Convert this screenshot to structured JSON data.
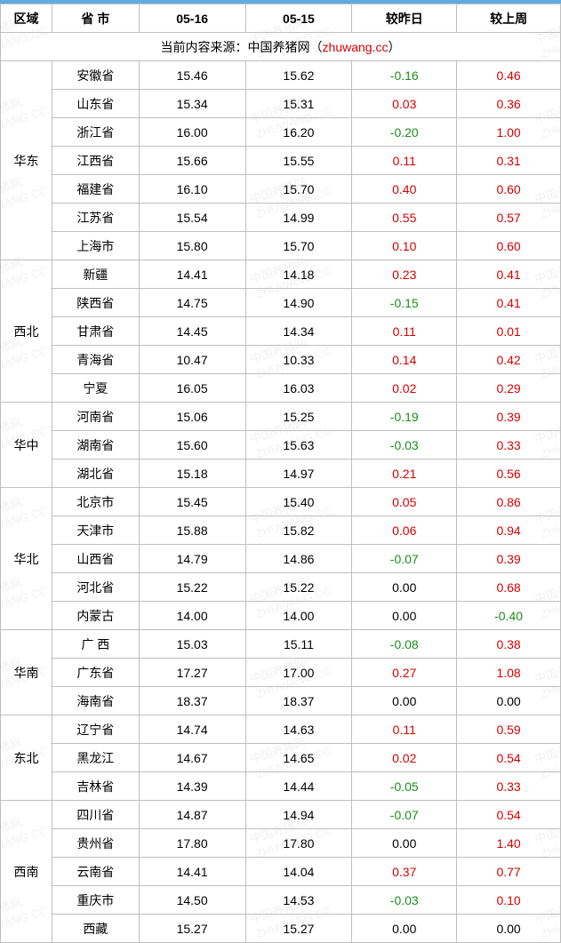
{
  "columns": {
    "region": "区域",
    "province": "省 市",
    "date1": "05-16",
    "date2": "05-15",
    "diff_day": "较昨日",
    "diff_week": "较上周"
  },
  "source": {
    "prefix": "当前内容来源：中国养猪网（",
    "site": "zhuwang.cc",
    "suffix": "）"
  },
  "colors": {
    "positive": "#d60000",
    "negative": "#1a8f1a",
    "zero": "#000000",
    "border": "#bfbfbf",
    "header_bar": "#5dade2"
  },
  "watermark": {
    "text_cn": "中国养猪网",
    "text_en": "ZHUWANG.CC"
  },
  "regions": [
    {
      "name": "华东",
      "rows": [
        {
          "prov": "安徽省",
          "v1": "15.46",
          "v2": "15.62",
          "d1": "-0.16",
          "d2": "0.46"
        },
        {
          "prov": "山东省",
          "v1": "15.34",
          "v2": "15.31",
          "d1": "0.03",
          "d2": "0.36"
        },
        {
          "prov": "浙江省",
          "v1": "16.00",
          "v2": "16.20",
          "d1": "-0.20",
          "d2": "1.00"
        },
        {
          "prov": "江西省",
          "v1": "15.66",
          "v2": "15.55",
          "d1": "0.11",
          "d2": "0.31"
        },
        {
          "prov": "福建省",
          "v1": "16.10",
          "v2": "15.70",
          "d1": "0.40",
          "d2": "0.60"
        },
        {
          "prov": "江苏省",
          "v1": "15.54",
          "v2": "14.99",
          "d1": "0.55",
          "d2": "0.57"
        },
        {
          "prov": "上海市",
          "v1": "15.80",
          "v2": "15.70",
          "d1": "0.10",
          "d2": "0.60"
        }
      ]
    },
    {
      "name": "西北",
      "rows": [
        {
          "prov": "新疆",
          "v1": "14.41",
          "v2": "14.18",
          "d1": "0.23",
          "d2": "0.41"
        },
        {
          "prov": "陕西省",
          "v1": "14.75",
          "v2": "14.90",
          "d1": "-0.15",
          "d2": "0.41"
        },
        {
          "prov": "甘肃省",
          "v1": "14.45",
          "v2": "14.34",
          "d1": "0.11",
          "d2": "0.01"
        },
        {
          "prov": "青海省",
          "v1": "10.47",
          "v2": "10.33",
          "d1": "0.14",
          "d2": "0.42"
        },
        {
          "prov": "宁夏",
          "v1": "16.05",
          "v2": "16.03",
          "d1": "0.02",
          "d2": "0.29"
        }
      ]
    },
    {
      "name": "华中",
      "rows": [
        {
          "prov": "河南省",
          "v1": "15.06",
          "v2": "15.25",
          "d1": "-0.19",
          "d2": "0.39"
        },
        {
          "prov": "湖南省",
          "v1": "15.60",
          "v2": "15.63",
          "d1": "-0.03",
          "d2": "0.33"
        },
        {
          "prov": "湖北省",
          "v1": "15.18",
          "v2": "14.97",
          "d1": "0.21",
          "d2": "0.56"
        }
      ]
    },
    {
      "name": "华北",
      "rows": [
        {
          "prov": "北京市",
          "v1": "15.45",
          "v2": "15.40",
          "d1": "0.05",
          "d2": "0.86"
        },
        {
          "prov": "天津市",
          "v1": "15.88",
          "v2": "15.82",
          "d1": "0.06",
          "d2": "0.94"
        },
        {
          "prov": "山西省",
          "v1": "14.79",
          "v2": "14.86",
          "d1": "-0.07",
          "d2": "0.39"
        },
        {
          "prov": "河北省",
          "v1": "15.22",
          "v2": "15.22",
          "d1": "0.00",
          "d2": "0.68"
        },
        {
          "prov": "内蒙古",
          "v1": "14.00",
          "v2": "14.00",
          "d1": "0.00",
          "d2": "-0.40"
        }
      ]
    },
    {
      "name": "华南",
      "rows": [
        {
          "prov": "广 西",
          "v1": "15.03",
          "v2": "15.11",
          "d1": "-0.08",
          "d2": "0.38"
        },
        {
          "prov": "广东省",
          "v1": "17.27",
          "v2": "17.00",
          "d1": "0.27",
          "d2": "1.08"
        },
        {
          "prov": "海南省",
          "v1": "18.37",
          "v2": "18.37",
          "d1": "0.00",
          "d2": "0.00"
        }
      ]
    },
    {
      "name": "东北",
      "rows": [
        {
          "prov": "辽宁省",
          "v1": "14.74",
          "v2": "14.63",
          "d1": "0.11",
          "d2": "0.59"
        },
        {
          "prov": "黑龙江",
          "v1": "14.67",
          "v2": "14.65",
          "d1": "0.02",
          "d2": "0.54"
        },
        {
          "prov": "吉林省",
          "v1": "14.39",
          "v2": "14.44",
          "d1": "-0.05",
          "d2": "0.33"
        }
      ]
    },
    {
      "name": "西南",
      "rows": [
        {
          "prov": "四川省",
          "v1": "14.87",
          "v2": "14.94",
          "d1": "-0.07",
          "d2": "0.54"
        },
        {
          "prov": "贵州省",
          "v1": "17.80",
          "v2": "17.80",
          "d1": "0.00",
          "d2": "1.40"
        },
        {
          "prov": "云南省",
          "v1": "14.41",
          "v2": "14.04",
          "d1": "0.37",
          "d2": "0.77"
        },
        {
          "prov": "重庆市",
          "v1": "14.50",
          "v2": "14.53",
          "d1": "-0.03",
          "d2": "0.10"
        },
        {
          "prov": "西藏",
          "v1": "15.27",
          "v2": "15.27",
          "d1": "0.00",
          "d2": "0.00"
        }
      ]
    }
  ]
}
